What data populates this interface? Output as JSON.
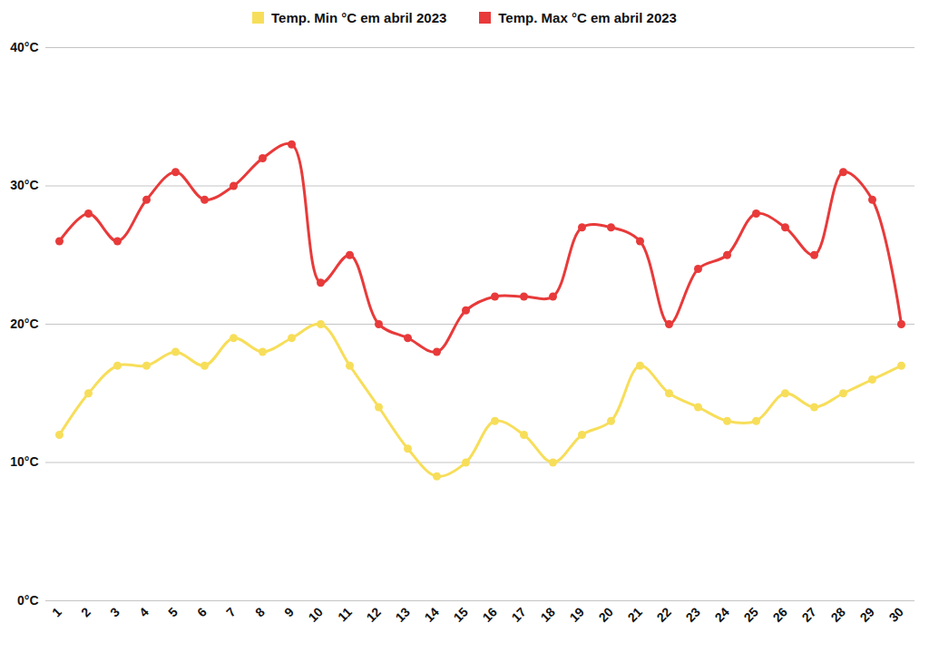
{
  "chart_data": {
    "type": "line",
    "categories": [
      "1",
      "2",
      "3",
      "4",
      "5",
      "6",
      "7",
      "8",
      "9",
      "10",
      "11",
      "12",
      "13",
      "14",
      "15",
      "16",
      "17",
      "18",
      "19",
      "20",
      "21",
      "22",
      "23",
      "24",
      "25",
      "26",
      "27",
      "28",
      "29",
      "30"
    ],
    "series": [
      {
        "name": "Temp. Min °C em abril 2023",
        "color": "#f7de5a",
        "marker": "circle",
        "values": [
          12,
          15,
          17,
          17,
          18,
          17,
          19,
          18,
          19,
          20,
          17,
          14,
          11,
          9,
          10,
          13,
          12,
          10,
          12,
          13,
          17,
          15,
          14,
          13,
          13,
          15,
          14,
          15,
          16,
          17
        ]
      },
      {
        "name": "Temp. Max °C em abril 2023",
        "color": "#e83a3a",
        "marker": "circle",
        "values": [
          26,
          28,
          26,
          29,
          31,
          29,
          30,
          32,
          33,
          23,
          25,
          20,
          19,
          18,
          21,
          22,
          22,
          22,
          27,
          27,
          26,
          20,
          24,
          25,
          28,
          27,
          25,
          31,
          29,
          20
        ]
      }
    ],
    "ylim": [
      0,
      40
    ],
    "yticks": [
      {
        "value": 0,
        "label": "0°C"
      },
      {
        "value": 10,
        "label": "10°C"
      },
      {
        "value": 20,
        "label": "20°C"
      },
      {
        "value": 30,
        "label": "30°C"
      },
      {
        "value": 40,
        "label": "40°C"
      }
    ],
    "grid": true,
    "legend": "top"
  }
}
